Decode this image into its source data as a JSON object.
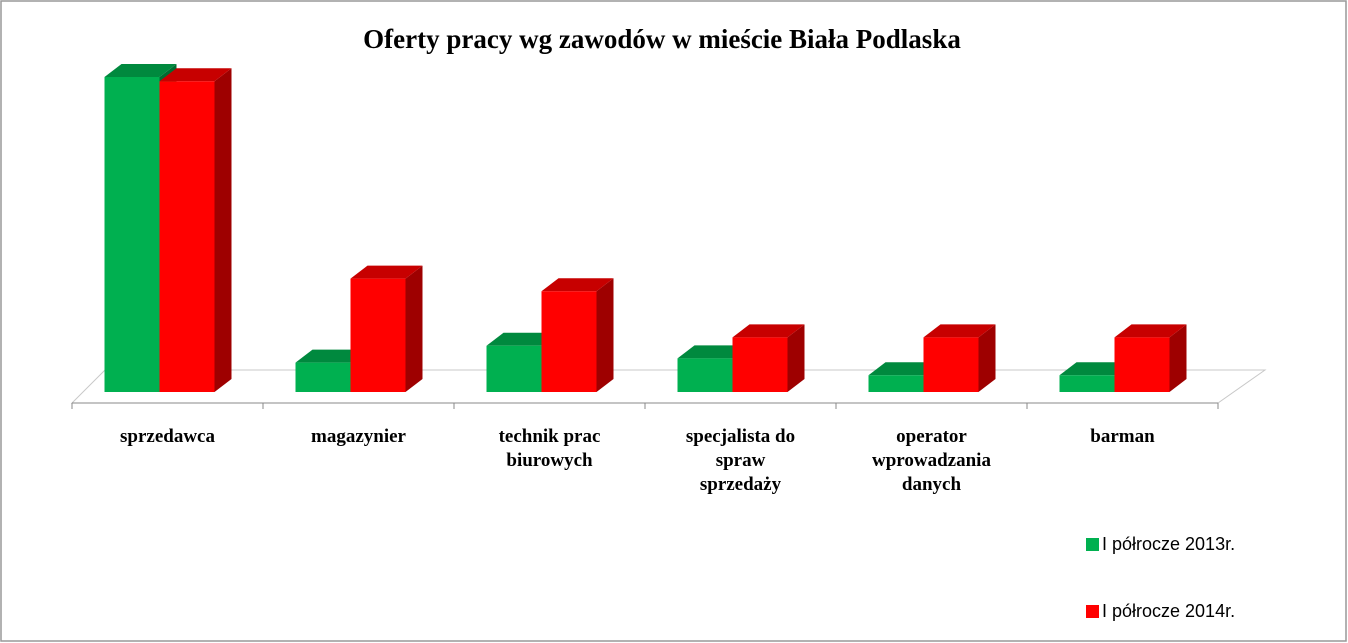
{
  "chart_data": {
    "type": "bar3d",
    "title": "Oferty pracy wg zawodów w mieście Biała Podlaska",
    "categories": [
      "sprzedawca",
      "magazynier",
      "technik prac biurowych",
      "specjalista do spraw sprzedaży",
      "operator wprowadzania danych",
      "barman"
    ],
    "series": [
      {
        "name": "I półrocze 2013r.",
        "color": "#00b050",
        "values": [
          75,
          7,
          11,
          8,
          4,
          4
        ]
      },
      {
        "name": "I półrocze 2014r.",
        "color": "#ff0000",
        "values": [
          74,
          27,
          24,
          13,
          13,
          13
        ]
      }
    ],
    "ylim": [
      0,
      80
    ],
    "legend": "right"
  }
}
